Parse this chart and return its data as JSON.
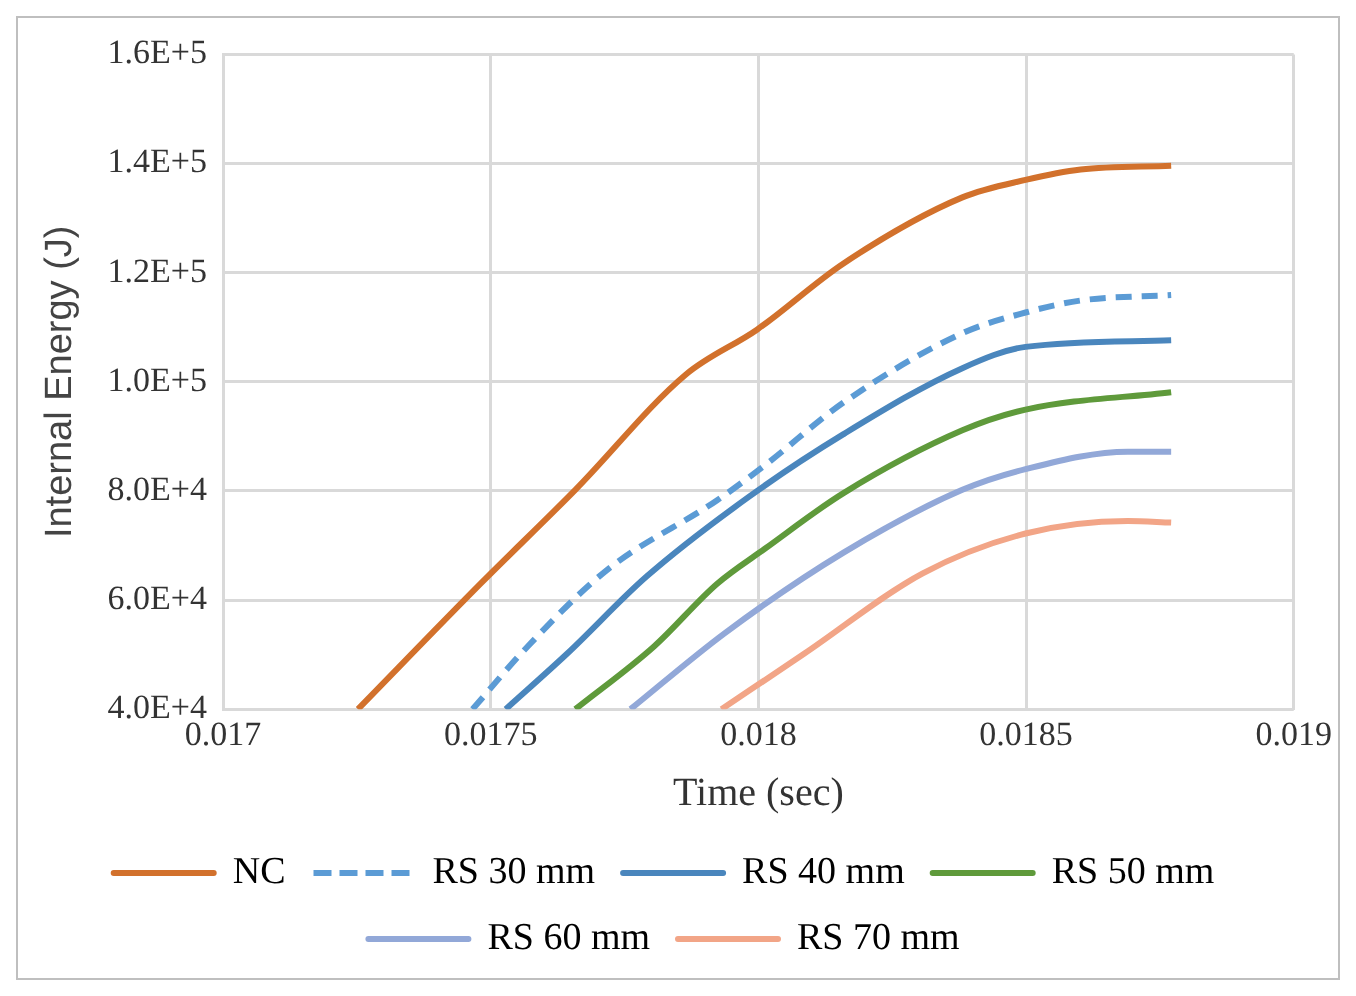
{
  "chart_data": {
    "type": "line",
    "xlabel": "Time (sec)",
    "ylabel": "Internal Energy (J)",
    "xlim": [
      0.017,
      0.019
    ],
    "xticks": [
      0.017,
      0.0175,
      0.018,
      0.0185,
      0.019
    ],
    "ylim": [
      40000,
      160000
    ],
    "yticks": [
      {
        "value": 40000,
        "label": "4.0E+4"
      },
      {
        "value": 60000,
        "label": "6.0E+4"
      },
      {
        "value": 80000,
        "label": "8.0E+4"
      },
      {
        "value": 100000,
        "label": "1.0E+5"
      },
      {
        "value": 120000,
        "label": "1.2E+5"
      },
      {
        "value": 140000,
        "label": "1.4E+5"
      },
      {
        "value": 160000,
        "label": "1.6E+5"
      }
    ],
    "grid": true,
    "legend": "bottom",
    "marker": "none",
    "series": [
      {
        "name": "NC",
        "color": "#d2712c",
        "line_style": "solid",
        "x": [
          0.017252,
          0.017481,
          0.017658,
          0.017864,
          0.017998,
          0.018159,
          0.018381,
          0.018499,
          0.018602,
          0.018771
        ],
        "values": [
          40000,
          63000,
          80200,
          101300,
          109600,
          121700,
          133800,
          137000,
          138900,
          139600
        ]
      },
      {
        "name": "RS 30 mm",
        "color": "#5b9bd5",
        "line_style": "dashed",
        "x": [
          0.017466,
          0.017569,
          0.017717,
          0.017923,
          0.018012,
          0.018159,
          0.018381,
          0.018499,
          0.018602,
          0.018771
        ],
        "values": [
          40000,
          51500,
          65500,
          78300,
          84700,
          96200,
          108900,
          112700,
          114900,
          115900
        ]
      },
      {
        "name": "RS 40 mm",
        "color": "#4a86bd",
        "line_style": "solid",
        "x": [
          0.017528,
          0.017643,
          0.017791,
          0.017982,
          0.018159,
          0.018381,
          0.018499,
          0.018771
        ],
        "values": [
          40000,
          50200,
          64300,
          78900,
          90400,
          102500,
          106400,
          107600
        ]
      },
      {
        "name": "RS 50 mm",
        "color": "#5f9a3b",
        "line_style": "solid",
        "x": [
          0.017658,
          0.017805,
          0.017923,
          0.018012,
          0.018159,
          0.018381,
          0.018499,
          0.018771
        ],
        "values": [
          40000,
          51500,
          63000,
          69400,
          79600,
          91100,
          94900,
          98100
        ]
      },
      {
        "name": "RS 60 mm",
        "color": "#92a8d8",
        "line_style": "solid",
        "x": [
          0.017761,
          0.017938,
          0.018159,
          0.018381,
          0.018499,
          0.01869,
          0.018771
        ],
        "values": [
          40000,
          54000,
          68700,
          80200,
          84000,
          87200,
          87200
        ]
      },
      {
        "name": "RS 70 mm",
        "color": "#f2a587",
        "line_style": "solid",
        "x": [
          0.017931,
          0.018086,
          0.018307,
          0.018499,
          0.01869,
          0.018771
        ],
        "values": [
          40000,
          50200,
          64900,
          72200,
          74500,
          74200
        ]
      }
    ]
  }
}
